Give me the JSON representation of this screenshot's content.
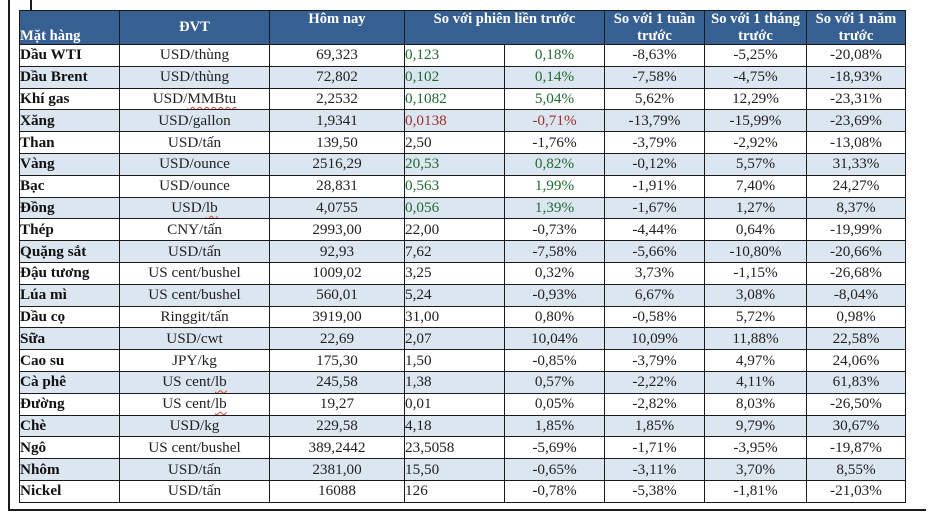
{
  "colors": {
    "header_bg": "#376092",
    "header_text": "#ffffff",
    "row_alt_bg": "#dce6f1",
    "positive_green": "#1e6b30",
    "negative_red": "#9e2f2c",
    "border": "#1a1a1a"
  },
  "table": {
    "header": {
      "item": "Mặt hàng",
      "unit": "ĐVT",
      "today": "Hôm nay",
      "vs_prev_session": "So với phiên liền trước",
      "vs_week": "So với 1 tuần trước",
      "vs_month": "So với 1 tháng trước",
      "vs_year": "So với 1 năm trước"
    },
    "rows": [
      {
        "item": "Dầu WTI",
        "unit": "USD/thùng",
        "unit_squiggle": null,
        "today": "69,323",
        "change": "0,123",
        "change_color": "green",
        "pct": "0,18%",
        "pct_color": "green",
        "week": "-8,63%",
        "month": "-5,25%",
        "year": "-20,08%"
      },
      {
        "item": "Dầu Brent",
        "unit": "USD/thùng",
        "unit_squiggle": null,
        "today": "72,802",
        "change": "0,102",
        "change_color": "green",
        "pct": "0,14%",
        "pct_color": "green",
        "week": "-7,58%",
        "month": "-4,75%",
        "year": "-18,93%"
      },
      {
        "item": "Khí gas",
        "unit": "USD/MMBtu",
        "unit_squiggle": "MMBtu",
        "today": "2,2532",
        "change": "0,1082",
        "change_color": "green",
        "pct": "5,04%",
        "pct_color": "green",
        "week": "5,62%",
        "month": "12,29%",
        "year": "-23,31%"
      },
      {
        "item": "Xăng",
        "unit": "USD/gallon",
        "unit_squiggle": null,
        "today": "1,9341",
        "change": "0,0138",
        "change_color": "red",
        "pct": "-0,71%",
        "pct_color": "red",
        "week": "-13,79%",
        "month": "-15,99%",
        "year": "-23,69%"
      },
      {
        "item": "Than",
        "unit": "USD/tấn",
        "unit_squiggle": null,
        "today": "139,50",
        "change": "2,50",
        "change_color": "black",
        "pct": "-1,76%",
        "pct_color": "black",
        "week": "-3,79%",
        "month": "-2,92%",
        "year": "-13,08%"
      },
      {
        "item": "Vàng",
        "unit": "USD/ounce",
        "unit_squiggle": null,
        "today": "2516,29",
        "change": "20,53",
        "change_color": "green",
        "pct": "0,82%",
        "pct_color": "green",
        "week": "-0,12%",
        "month": "5,57%",
        "year": "31,33%"
      },
      {
        "item": "Bạc",
        "unit": "USD/ounce",
        "unit_squiggle": null,
        "today": "28,831",
        "change": "0,563",
        "change_color": "green",
        "pct": "1,99%",
        "pct_color": "green",
        "week": "-1,91%",
        "month": "7,40%",
        "year": "24,27%"
      },
      {
        "item": "Đồng",
        "unit": "USD/lb",
        "unit_squiggle": "lb",
        "today": "4,0755",
        "change": "0,056",
        "change_color": "green",
        "pct": "1,39%",
        "pct_color": "green",
        "week": "-1,67%",
        "month": "1,27%",
        "year": "8,37%"
      },
      {
        "item": "Thép",
        "unit": "CNY/tấn",
        "unit_squiggle": null,
        "today": "2993,00",
        "change": "22,00",
        "change_color": "black",
        "pct": "-0,73%",
        "pct_color": "black",
        "week": "-4,44%",
        "month": "0,64%",
        "year": "-19,99%"
      },
      {
        "item": "Quặng sắt",
        "unit": "USD/tấn",
        "unit_squiggle": null,
        "today": "92,93",
        "change": "7,62",
        "change_color": "black",
        "pct": "-7,58%",
        "pct_color": "black",
        "week": "-5,66%",
        "month": "-10,80%",
        "year": "-20,66%"
      },
      {
        "item": "Đậu tương",
        "unit": "US cent/bushel",
        "unit_squiggle": null,
        "today": "1009,02",
        "change": "3,25",
        "change_color": "black",
        "pct": "0,32%",
        "pct_color": "black",
        "week": "3,73%",
        "month": "-1,15%",
        "year": "-26,68%"
      },
      {
        "item": "Lúa mì",
        "unit": "US cent/bushel",
        "unit_squiggle": null,
        "today": "560,01",
        "change": "5,24",
        "change_color": "black",
        "pct": "-0,93%",
        "pct_color": "black",
        "week": "6,67%",
        "month": "3,08%",
        "year": "-8,04%"
      },
      {
        "item": "Dầu cọ",
        "unit": "Ringgit/tấn",
        "unit_squiggle": null,
        "today": "3919,00",
        "change": "31,00",
        "change_color": "black",
        "pct": "0,80%",
        "pct_color": "black",
        "week": "-0,58%",
        "month": "5,72%",
        "year": "0,98%"
      },
      {
        "item": "Sữa",
        "unit": "USD/cwt",
        "unit_squiggle": null,
        "today": "22,69",
        "change": "2,07",
        "change_color": "black",
        "pct": "10,04%",
        "pct_color": "black",
        "week": "10,09%",
        "month": "11,88%",
        "year": "22,58%"
      },
      {
        "item": "Cao su",
        "unit": "JPY/kg",
        "unit_squiggle": null,
        "today": "175,30",
        "change": "1,50",
        "change_color": "black",
        "pct": "-0,85%",
        "pct_color": "black",
        "week": "-3,79%",
        "month": "4,97%",
        "year": "24,06%"
      },
      {
        "item": "Cà phê",
        "unit": "US cent/lb",
        "unit_squiggle": "lb",
        "today": "245,58",
        "change": "1,38",
        "change_color": "black",
        "pct": "0,57%",
        "pct_color": "black",
        "week": "-2,22%",
        "month": "4,11%",
        "year": "61,83%"
      },
      {
        "item": "Đường",
        "unit": "US cent/lb",
        "unit_squiggle": "lb",
        "today": "19,27",
        "change": "0,01",
        "change_color": "black",
        "pct": "0,05%",
        "pct_color": "black",
        "week": "-2,82%",
        "month": "8,03%",
        "year": "-26,50%"
      },
      {
        "item": "Chè",
        "unit": "USD/kg",
        "unit_squiggle": null,
        "today": "229,58",
        "change": "4,18",
        "change_color": "black",
        "pct": "1,85%",
        "pct_color": "black",
        "week": "1,85%",
        "month": "9,79%",
        "year": "30,67%"
      },
      {
        "item": "Ngô",
        "unit": "US cent/bushel",
        "unit_squiggle": null,
        "today": "389,2442",
        "change": "23,5058",
        "change_color": "black",
        "pct": "-5,69%",
        "pct_color": "black",
        "week": "-1,71%",
        "month": "-3,95%",
        "year": "-19,87%"
      },
      {
        "item": "Nhôm",
        "unit": "USD/tấn",
        "unit_squiggle": null,
        "today": "2381,00",
        "change": "15,50",
        "change_color": "black",
        "pct": "-0,65%",
        "pct_color": "black",
        "week": "-3,11%",
        "month": "3,70%",
        "year": "8,55%"
      },
      {
        "item": "Nickel",
        "unit": "USD/tấn",
        "unit_squiggle": null,
        "today": "16088",
        "change": "126",
        "change_color": "black",
        "pct": "-0,78%",
        "pct_color": "black",
        "week": "-5,38%",
        "month": "-1,81%",
        "year": "-21,03%"
      }
    ]
  }
}
